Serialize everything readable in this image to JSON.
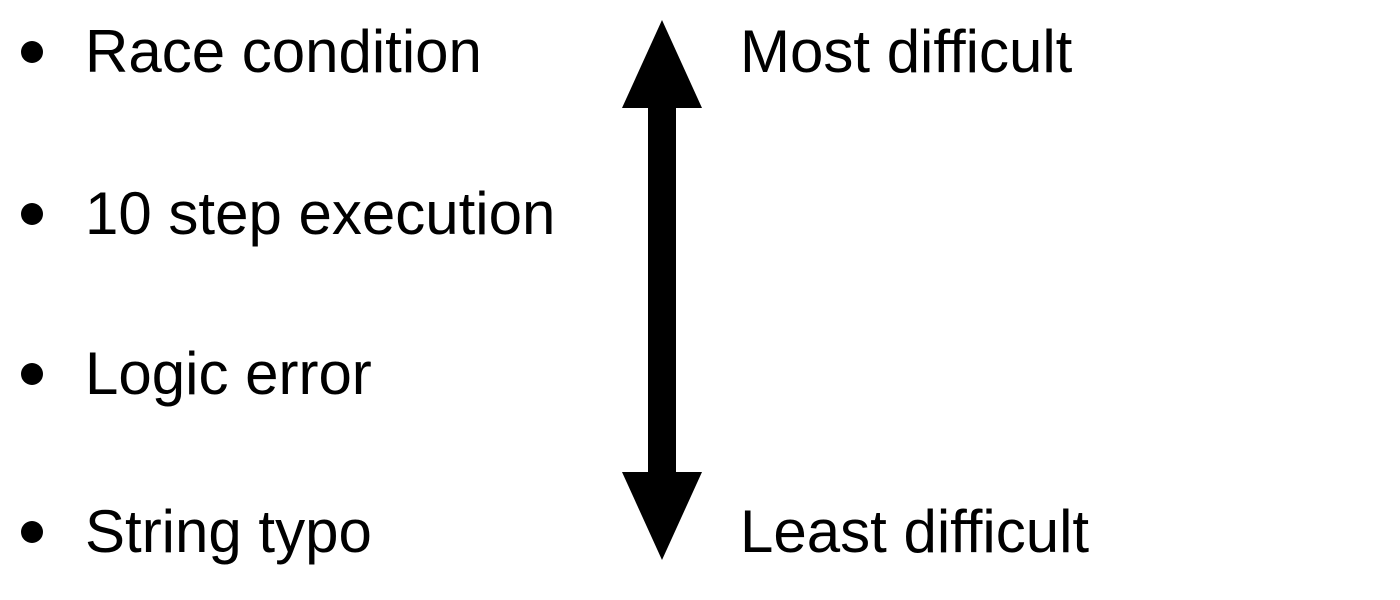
{
  "bullets": [
    {
      "text": "Race condition"
    },
    {
      "text": "10 step execution"
    },
    {
      "text": "Logic error"
    },
    {
      "text": "String typo"
    }
  ],
  "scale": {
    "top_label": "Most difficult",
    "bottom_label": "Least difficult"
  },
  "colors": {
    "text": "#000000",
    "arrow": "#000000",
    "background": "#ffffff"
  },
  "icons": {
    "arrow": "double-headed-vertical-arrow",
    "bullet": "filled-circle"
  }
}
